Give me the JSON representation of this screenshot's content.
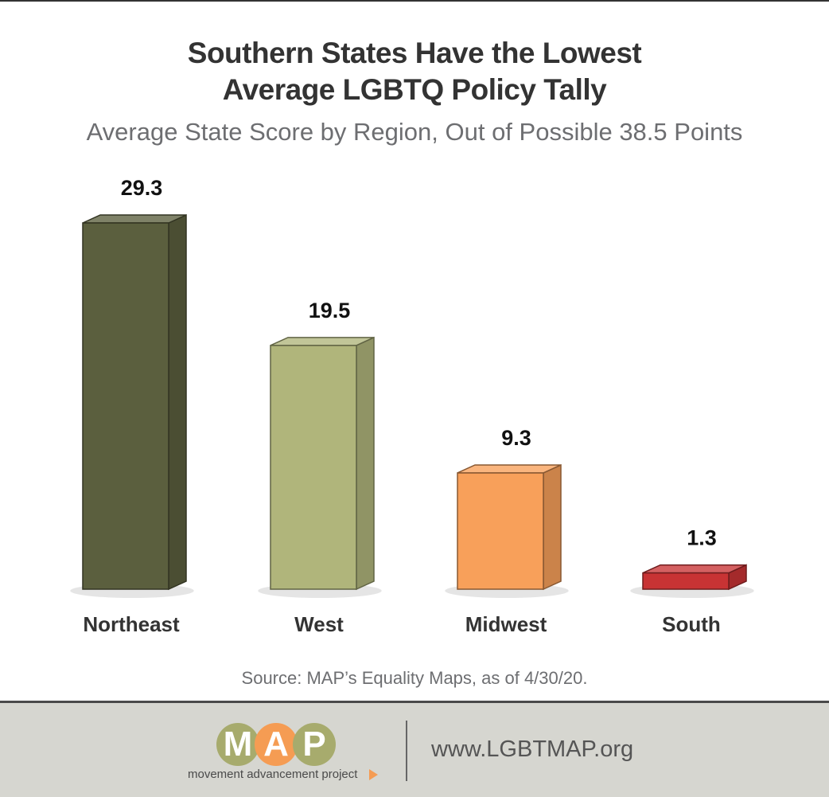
{
  "title_line1": "Southern States Have the Lowest",
  "title_line2": "Average LGBTQ Policy Tally",
  "subtitle": "Average State Score by Region, Out of Possible 38.5 Points",
  "source": "Source: MAP’s Equality Maps, as of 4/30/20.",
  "footer": {
    "logo_letters": [
      "M",
      "A",
      "P"
    ],
    "logo_tagline": "movement advancement project",
    "url": "www.LGBTMAP.org"
  },
  "colors": {
    "northeast": "#5b5f3e",
    "west": "#b0b57b",
    "midwest": "#f8a05a",
    "south": "#c83334",
    "logo_olive": "#a7ab6d",
    "logo_orange": "#f59c53"
  },
  "chart_data": {
    "type": "bar",
    "title": "Southern States Have the Lowest Average LGBTQ Policy Tally",
    "subtitle": "Average State Score by Region, Out of Possible 38.5 Points",
    "categories": [
      "Northeast",
      "West",
      "Midwest",
      "South"
    ],
    "values": [
      29.3,
      19.5,
      9.3,
      1.3
    ],
    "value_labels": [
      "29.3",
      "19.5",
      "9.3",
      "1.3"
    ],
    "xlabel": "",
    "ylabel": "",
    "grid": false,
    "legend": "none"
  }
}
